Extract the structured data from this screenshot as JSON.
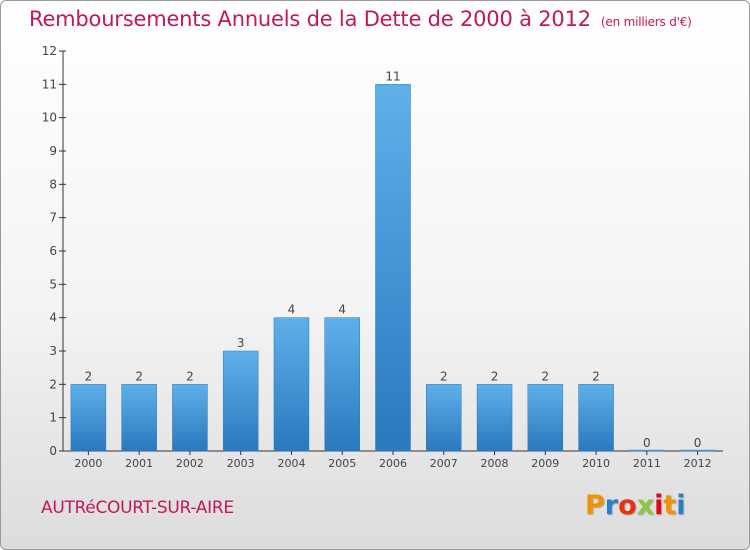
{
  "header": {
    "title": "Remboursements Annuels de la Dette de 2000 à 2012",
    "unit": "(en milliers d'€)"
  },
  "footer": {
    "commune": "AUTRéCOURT-SUR-AIRE",
    "logo_text": "Proxiti",
    "logo_colors": [
      "#f39200",
      "#2a7fc9",
      "#e63312",
      "#8dc63f",
      "#e30613",
      "#f39200",
      "#2a7fc9"
    ]
  },
  "colors": {
    "bar": "#3f95d8",
    "title": "#c2185b",
    "axis": "#333333"
  },
  "chart_data": {
    "type": "bar",
    "categories": [
      "2000",
      "2001",
      "2002",
      "2003",
      "2004",
      "2005",
      "2006",
      "2007",
      "2008",
      "2009",
      "2010",
      "2011",
      "2012"
    ],
    "values": [
      2,
      2,
      2,
      3,
      4,
      4,
      11,
      2,
      2,
      2,
      2,
      0,
      0
    ],
    "data_labels": [
      "2",
      "2",
      "2",
      "3",
      "4",
      "4",
      "11",
      "2",
      "2",
      "2",
      "2",
      "0",
      "0"
    ],
    "y_ticks": [
      "0",
      "1",
      "2",
      "3",
      "4",
      "5",
      "6",
      "7",
      "8",
      "9",
      "10",
      "11",
      "12"
    ],
    "ylim": [
      0,
      12
    ],
    "grid": false,
    "legend": "none"
  }
}
